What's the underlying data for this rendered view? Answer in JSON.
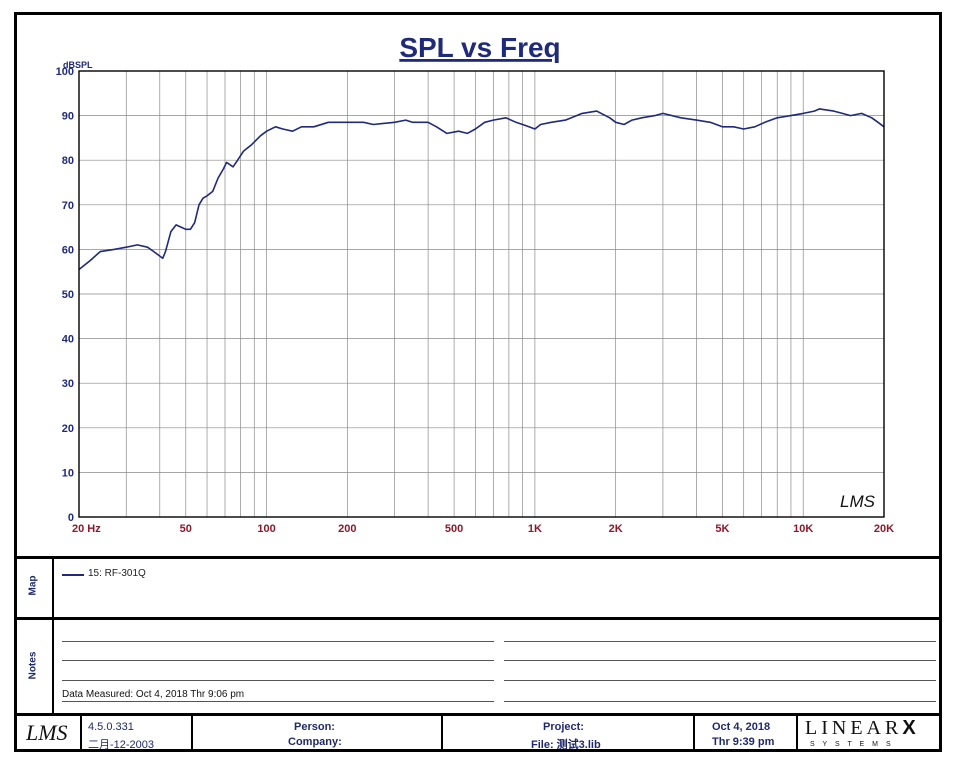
{
  "chart_data": {
    "type": "line",
    "title": "SPL vs Freq",
    "ylabel": "dBSPL",
    "xscale": "log",
    "xlim": [
      20,
      20000
    ],
    "ylim": [
      0,
      100
    ],
    "grid": true,
    "y_ticks": [
      "0",
      "10",
      "20",
      "30",
      "40",
      "50",
      "60",
      "70",
      "80",
      "90",
      "100"
    ],
    "x_ticks": [
      {
        "value": 20,
        "label": "20  Hz"
      },
      {
        "value": 50,
        "label": "50"
      },
      {
        "value": 100,
        "label": "100"
      },
      {
        "value": 200,
        "label": "200"
      },
      {
        "value": 500,
        "label": "500"
      },
      {
        "value": 1000,
        "label": "1K"
      },
      {
        "value": 2000,
        "label": "2K"
      },
      {
        "value": 5000,
        "label": "5K"
      },
      {
        "value": 10000,
        "label": "10K"
      },
      {
        "value": 20000,
        "label": "20K"
      }
    ],
    "watermark": "LMS",
    "series": [
      {
        "name": "15: RF-301Q",
        "color": "#1f2a7a",
        "points": [
          [
            20,
            55.5
          ],
          [
            22,
            57.5
          ],
          [
            24,
            59.5
          ],
          [
            27,
            60
          ],
          [
            30,
            60.5
          ],
          [
            33,
            61
          ],
          [
            36,
            60.5
          ],
          [
            38,
            59.5
          ],
          [
            40,
            58.5
          ],
          [
            41,
            58
          ],
          [
            42,
            59.5
          ],
          [
            44,
            64
          ],
          [
            46,
            65.5
          ],
          [
            48,
            65
          ],
          [
            50,
            64.5
          ],
          [
            52,
            64.5
          ],
          [
            54,
            66
          ],
          [
            56,
            70
          ],
          [
            58,
            71.5
          ],
          [
            60,
            72
          ],
          [
            63,
            73
          ],
          [
            66,
            76
          ],
          [
            69,
            78
          ],
          [
            71,
            79.5
          ],
          [
            73,
            79
          ],
          [
            75,
            78.5
          ],
          [
            78,
            80
          ],
          [
            82,
            82
          ],
          [
            88,
            83.5
          ],
          [
            95,
            85.5
          ],
          [
            100,
            86.5
          ],
          [
            108,
            87.5
          ],
          [
            115,
            87
          ],
          [
            125,
            86.5
          ],
          [
            135,
            87.5
          ],
          [
            150,
            87.5
          ],
          [
            170,
            88.5
          ],
          [
            200,
            88.5
          ],
          [
            230,
            88.5
          ],
          [
            250,
            88
          ],
          [
            300,
            88.5
          ],
          [
            330,
            89
          ],
          [
            350,
            88.5
          ],
          [
            400,
            88.5
          ],
          [
            430,
            87.5
          ],
          [
            470,
            86
          ],
          [
            520,
            86.5
          ],
          [
            560,
            86
          ],
          [
            600,
            87
          ],
          [
            650,
            88.5
          ],
          [
            700,
            89
          ],
          [
            780,
            89.5
          ],
          [
            850,
            88.5
          ],
          [
            900,
            88
          ],
          [
            950,
            87.5
          ],
          [
            1000,
            87
          ],
          [
            1050,
            88
          ],
          [
            1150,
            88.5
          ],
          [
            1300,
            89
          ],
          [
            1500,
            90.5
          ],
          [
            1700,
            91
          ],
          [
            1900,
            89.5
          ],
          [
            2000,
            88.5
          ],
          [
            2150,
            88
          ],
          [
            2300,
            89
          ],
          [
            2500,
            89.5
          ],
          [
            2800,
            90
          ],
          [
            3000,
            90.5
          ],
          [
            3500,
            89.5
          ],
          [
            4000,
            89
          ],
          [
            4500,
            88.5
          ],
          [
            5000,
            87.5
          ],
          [
            5500,
            87.5
          ],
          [
            6000,
            87
          ],
          [
            6600,
            87.5
          ],
          [
            7200,
            88.5
          ],
          [
            8000,
            89.5
          ],
          [
            9000,
            90
          ],
          [
            10000,
            90.5
          ],
          [
            11000,
            91
          ],
          [
            11500,
            91.5
          ],
          [
            13000,
            91
          ],
          [
            14000,
            90.5
          ],
          [
            15000,
            90
          ],
          [
            16500,
            90.5
          ],
          [
            18000,
            89.5
          ],
          [
            19000,
            88.5
          ],
          [
            20000,
            87.5
          ]
        ]
      }
    ]
  },
  "map": {
    "label": "Map",
    "legend_entry": "15: RF-301Q"
  },
  "notes": {
    "label": "Notes",
    "measured": "Data Measured: Oct  4, 2018  Thr  9:06 pm"
  },
  "footer": {
    "logo": "LMS",
    "version": "4.5.0.331",
    "build_date": "二月-12-2003",
    "person_label": "Person:",
    "company_label": "Company:",
    "project_label": "Project:",
    "file_label": "File: 测试3.lib",
    "date": "Oct  4, 2018",
    "time": "Thr  9:39 pm",
    "brand": "LINEAR",
    "brand_x": "X",
    "brand_sub": "S Y S T E M S"
  }
}
